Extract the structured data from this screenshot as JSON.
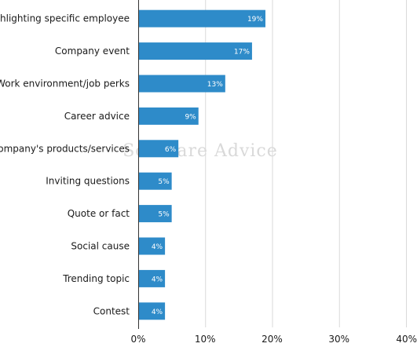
{
  "chart_data": {
    "type": "bar",
    "orientation": "horizontal",
    "categories": [
      "Highlighting specific employee",
      "Company event",
      "Work environment/job perks",
      "Career advice",
      "Company's products/services",
      "Inviting questions",
      "Quote or fact",
      "Social cause",
      "Trending topic",
      "Contest"
    ],
    "values": [
      19,
      17,
      13,
      9,
      6,
      5,
      5,
      4,
      4,
      4
    ],
    "value_labels": [
      "19%",
      "17%",
      "13%",
      "9%",
      "6%",
      "5%",
      "5%",
      "4%",
      "4%",
      "4%"
    ],
    "x_ticks": [
      "0%",
      "10%",
      "20%",
      "30%",
      "40%"
    ],
    "xlim": [
      0,
      40
    ],
    "title": "",
    "xlabel": "",
    "ylabel": "",
    "grid": "vertical",
    "legend": "none",
    "bar_color": "#2e8bc9",
    "grid_color": "#d9d9d9",
    "axis_color": "#333333"
  },
  "watermark": {
    "text": "Software Advice"
  }
}
